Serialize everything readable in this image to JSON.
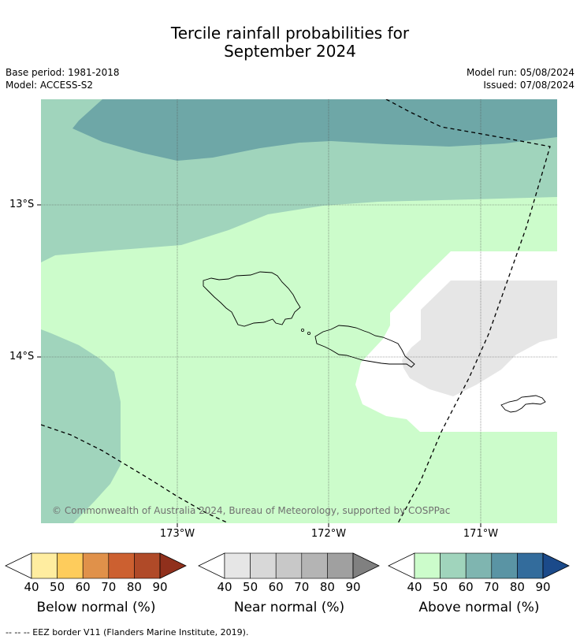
{
  "title": {
    "line1": "Tercile rainfall probabilities for",
    "line2": "September 2024"
  },
  "meta": {
    "base_period": "Base period: 1981-2018",
    "model": "Model: ACCESS-S2",
    "model_run": "Model run: 05/08/2024",
    "issued": "Issued: 07/08/2024"
  },
  "map": {
    "lat_labels": [
      "13°S",
      "14°S"
    ],
    "lon_labels": [
      "173°W",
      "172°W",
      "171°W"
    ],
    "copyright": "© Commonwealth of Australia 2024, Bureau of Meteorology, supported by COSPPac"
  },
  "colorbars": [
    {
      "title": "Below normal (%)",
      "ticks": [
        "40",
        "50",
        "60",
        "70",
        "80",
        "90"
      ],
      "colors": [
        "#ffeda0",
        "#fecc5c",
        "#e0914a",
        "#cc6030",
        "#b04a28",
        "#90301c"
      ]
    },
    {
      "title": "Near normal (%)",
      "ticks": [
        "40",
        "50",
        "60",
        "70",
        "80",
        "90"
      ],
      "colors": [
        "#e6e6e6",
        "#d8d8d8",
        "#c8c8c8",
        "#b4b4b4",
        "#a0a0a0",
        "#808080"
      ]
    },
    {
      "title": "Above normal (%)",
      "ticks": [
        "40",
        "50",
        "60",
        "70",
        "80",
        "90"
      ],
      "colors": [
        "#ccfccb",
        "#a0d4bc",
        "#7fb5b0",
        "#5a94a4",
        "#336c9c",
        "#1b4a8a"
      ]
    }
  ],
  "footer": "--  --  -- EEZ border V11 (Flanders Marine Institute, 2019)."
}
